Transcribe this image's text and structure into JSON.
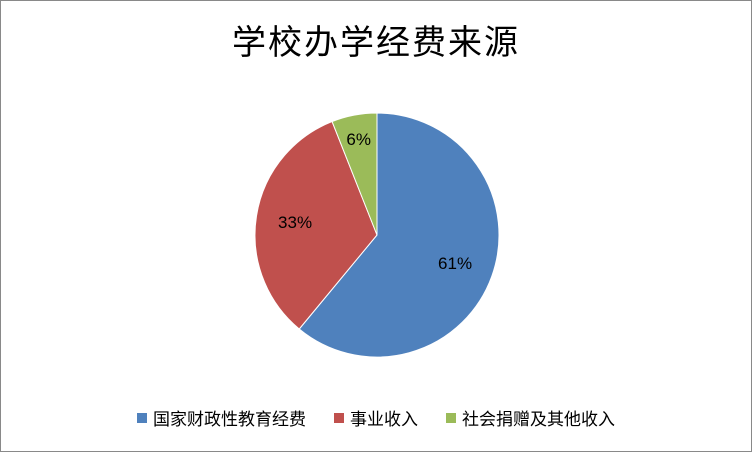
{
  "chart_data": {
    "type": "pie",
    "title": "学校办学经费来源",
    "categories": [
      "国家财政性教育经费",
      "事业收入",
      "社会捐赠及其他收入"
    ],
    "values": [
      61,
      33,
      6
    ],
    "data_labels": [
      "61%",
      "33%",
      "6%"
    ],
    "colors": [
      "#4F81BD",
      "#C0504D",
      "#9BBB59"
    ],
    "start_angle_deg": 0,
    "direction": "clockwise",
    "legend_position": "bottom"
  }
}
